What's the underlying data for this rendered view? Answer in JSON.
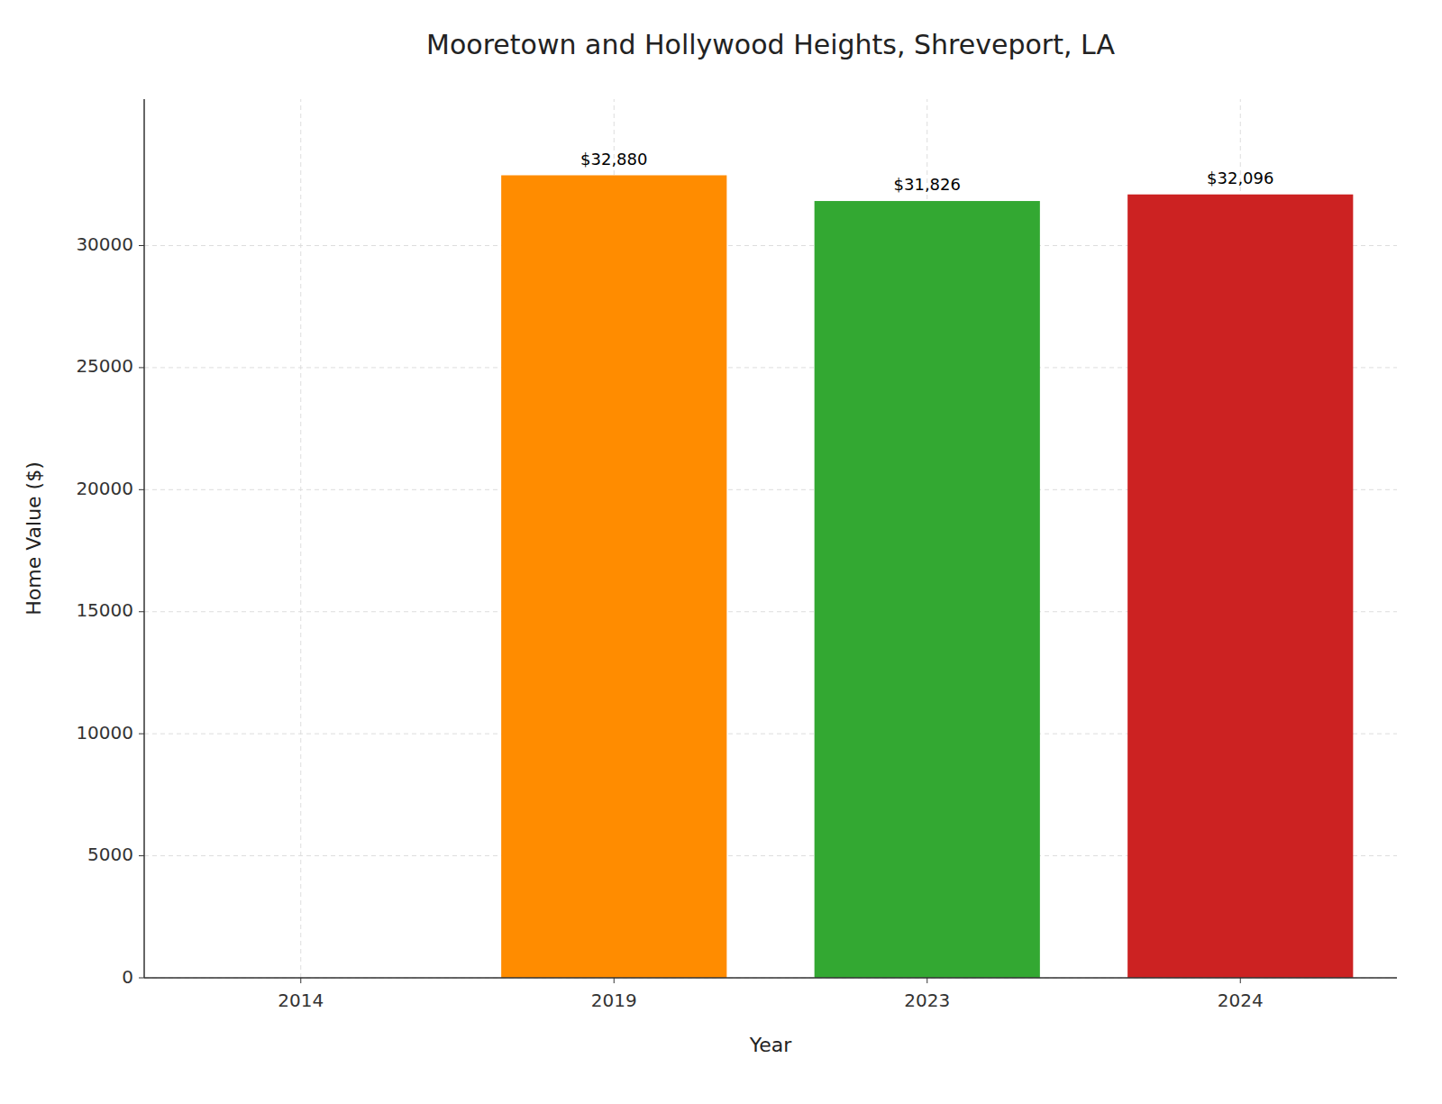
{
  "chart_data": {
    "type": "bar",
    "title": "Mooretown and Hollywood Heights, Shreveport, LA",
    "x_label": "Year",
    "y_label": "Home Value ($)",
    "categories": [
      "2014",
      "2019",
      "2023",
      "2024"
    ],
    "values": [
      0,
      32880,
      31826,
      32096
    ],
    "value_labels": [
      null,
      "$32,880",
      "$31,826",
      "$32,096"
    ],
    "data_labels": true,
    "colors": [
      "#FF8C00",
      "#FF8C00",
      "#33A832",
      "#CC2222"
    ],
    "ylim": [
      0,
      36000
    ],
    "yticks": [
      0,
      5000,
      10000,
      15000,
      20000,
      25000,
      30000
    ],
    "grid": true
  }
}
